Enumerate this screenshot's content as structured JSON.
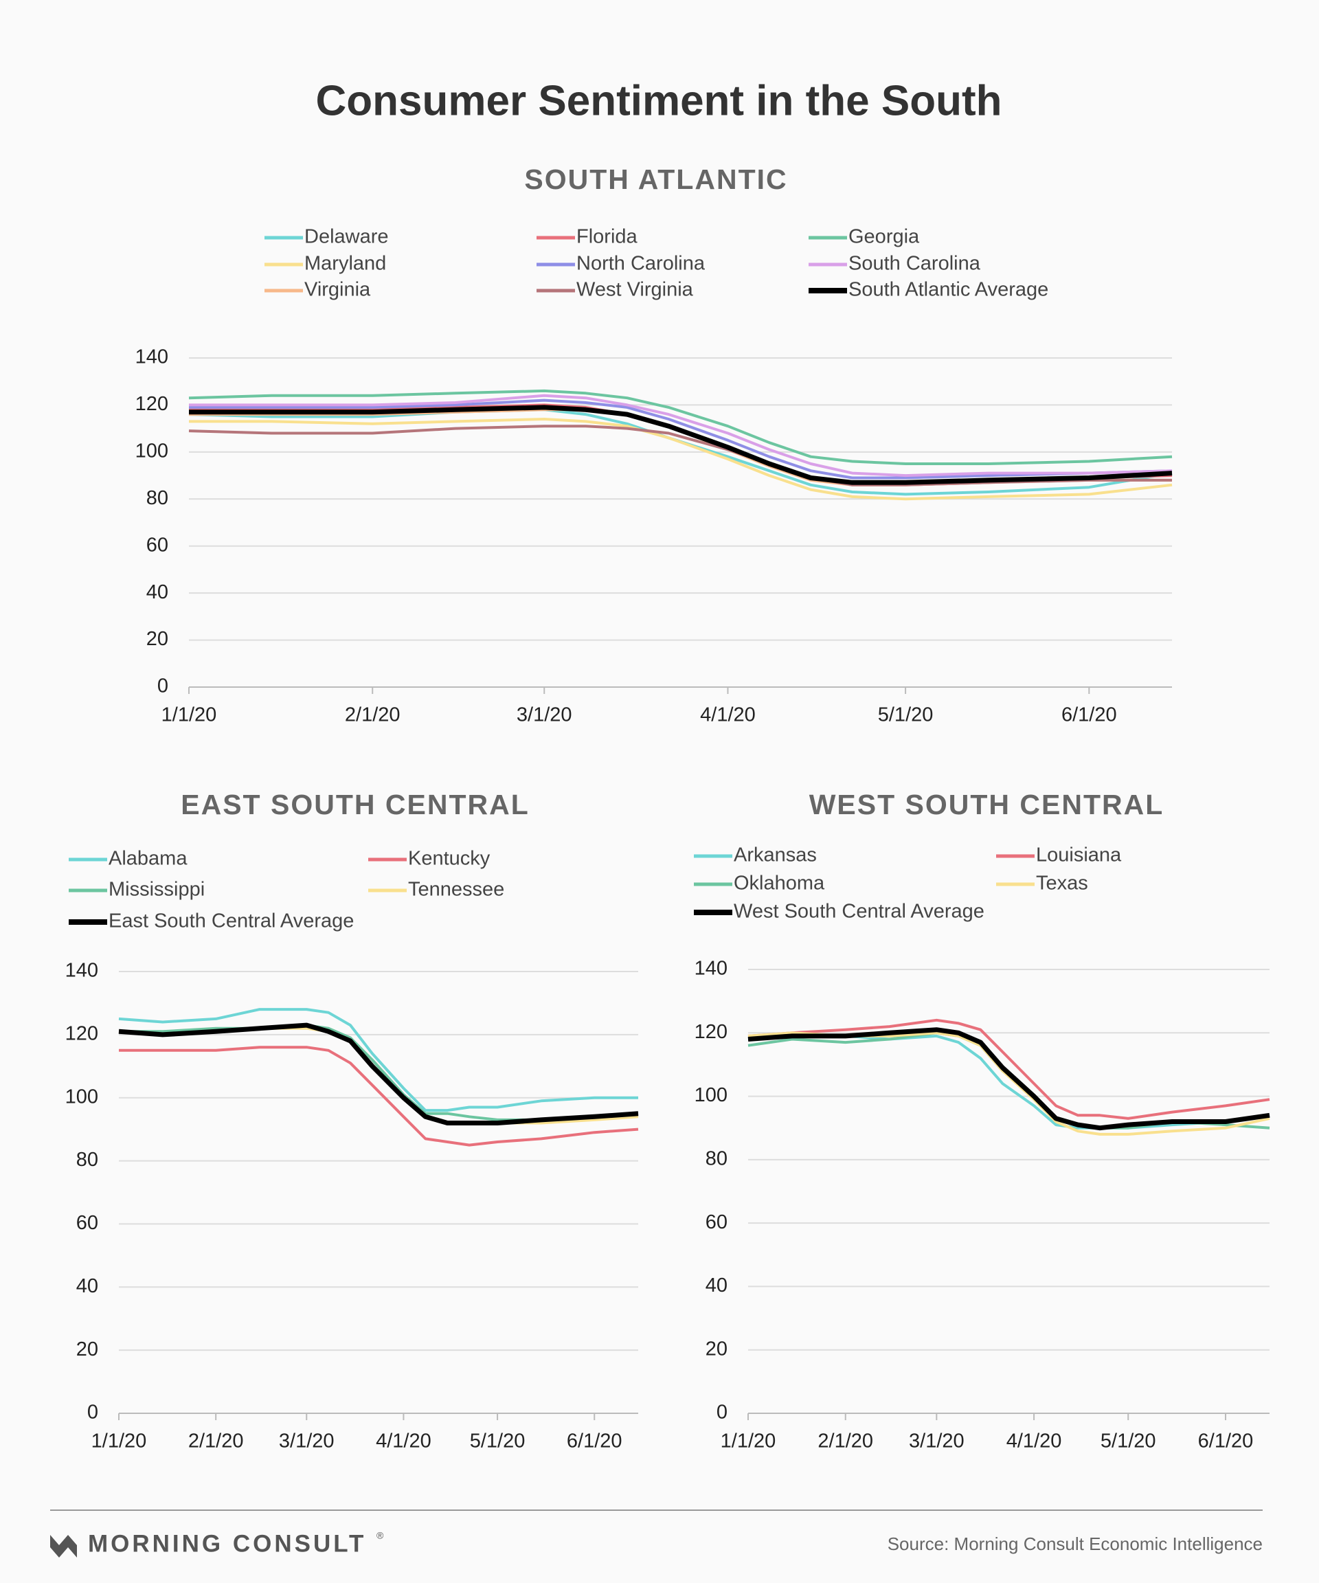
{
  "title": "Consumer Sentiment in the South",
  "footer": {
    "brand": "MORNING CONSULT",
    "brand_mark": "®",
    "source": "Source: Morning Consult Economic Intelligence"
  },
  "chart_data": [
    {
      "type": "line",
      "title": "SOUTH ATLANTIC",
      "x": [
        "1/1/20",
        "1/15/20",
        "2/1/20",
        "2/15/20",
        "3/1/20",
        "3/8/20",
        "3/15/20",
        "3/22/20",
        "4/1/20",
        "4/8/20",
        "4/15/20",
        "4/22/20",
        "5/1/20",
        "5/15/20",
        "6/1/20",
        "6/15/20"
      ],
      "xlim": [
        "1/1/20",
        "6/15/20"
      ],
      "xticks": [
        "1/1/20",
        "2/1/20",
        "3/1/20",
        "4/1/20",
        "5/1/20",
        "6/1/20"
      ],
      "ylim": [
        0,
        140
      ],
      "yticks": [
        0,
        20,
        40,
        60,
        80,
        100,
        120,
        140
      ],
      "grid": true,
      "series": [
        {
          "name": "Delaware",
          "color": "#6dd5d5",
          "values": [
            116,
            115,
            115,
            117,
            118,
            116,
            112,
            106,
            98,
            92,
            86,
            83,
            82,
            83,
            85,
            91
          ]
        },
        {
          "name": "Florida",
          "color": "#e8707b",
          "values": [
            118,
            118,
            118,
            119,
            120,
            119,
            116,
            111,
            102,
            95,
            89,
            86,
            86,
            87,
            89,
            90
          ]
        },
        {
          "name": "Georgia",
          "color": "#6cc5a0",
          "values": [
            123,
            124,
            124,
            125,
            126,
            125,
            123,
            119,
            111,
            104,
            98,
            96,
            95,
            95,
            96,
            98
          ]
        },
        {
          "name": "Maryland",
          "color": "#f9e08e",
          "values": [
            113,
            113,
            112,
            113,
            114,
            113,
            111,
            106,
            97,
            90,
            84,
            81,
            80,
            81,
            82,
            86
          ]
        },
        {
          "name": "North Carolina",
          "color": "#8e8ee6",
          "values": [
            119,
            119,
            119,
            120,
            122,
            121,
            119,
            114,
            105,
            98,
            92,
            89,
            89,
            90,
            91,
            92
          ]
        },
        {
          "name": "South Carolina",
          "color": "#d9a0e8",
          "values": [
            120,
            120,
            120,
            121,
            124,
            123,
            120,
            116,
            108,
            101,
            95,
            91,
            90,
            91,
            91,
            92
          ]
        },
        {
          "name": "Virginia",
          "color": "#f7b88a",
          "values": [
            116,
            116,
            116,
            117,
            118,
            118,
            116,
            111,
            101,
            94,
            88,
            86,
            86,
            87,
            88,
            88
          ]
        },
        {
          "name": "West Virginia",
          "color": "#b5757a",
          "values": [
            109,
            108,
            108,
            110,
            111,
            111,
            110,
            108,
            101,
            95,
            89,
            86,
            86,
            87,
            88,
            88
          ]
        },
        {
          "name": "South Atlantic Average",
          "color": "#000000",
          "values": [
            117,
            117,
            117,
            118,
            119,
            118,
            116,
            111,
            102,
            95,
            89,
            87,
            87,
            88,
            89,
            91
          ]
        }
      ]
    },
    {
      "type": "line",
      "title": "EAST SOUTH CENTRAL",
      "x": [
        "1/1/20",
        "1/15/20",
        "2/1/20",
        "2/15/20",
        "3/1/20",
        "3/8/20",
        "3/15/20",
        "3/22/20",
        "4/1/20",
        "4/8/20",
        "4/15/20",
        "4/22/20",
        "5/1/20",
        "5/15/20",
        "6/1/20",
        "6/15/20"
      ],
      "xlim": [
        "1/1/20",
        "6/15/20"
      ],
      "xticks": [
        "1/1/20",
        "2/1/20",
        "3/1/20",
        "4/1/20",
        "5/1/20",
        "6/1/20"
      ],
      "ylim": [
        0,
        140
      ],
      "yticks": [
        0,
        20,
        40,
        60,
        80,
        100,
        120,
        140
      ],
      "grid": true,
      "series": [
        {
          "name": "Alabama",
          "color": "#6dd5d5",
          "values": [
            125,
            124,
            125,
            128,
            128,
            127,
            123,
            114,
            103,
            96,
            96,
            97,
            97,
            99,
            100,
            100
          ]
        },
        {
          "name": "Kentucky",
          "color": "#e8707b",
          "values": [
            115,
            115,
            115,
            116,
            116,
            115,
            111,
            104,
            94,
            87,
            86,
            85,
            86,
            87,
            89,
            90
          ]
        },
        {
          "name": "Mississippi",
          "color": "#6cc5a0",
          "values": [
            121,
            121,
            122,
            122,
            123,
            122,
            119,
            112,
            101,
            95,
            95,
            94,
            93,
            93,
            94,
            95
          ]
        },
        {
          "name": "Tennessee",
          "color": "#f9e08e",
          "values": [
            121,
            120,
            121,
            122,
            122,
            121,
            118,
            110,
            100,
            94,
            92,
            92,
            92,
            92,
            93,
            94
          ]
        },
        {
          "name": "East South Central Average",
          "color": "#000000",
          "values": [
            121,
            120,
            121,
            122,
            123,
            121,
            118,
            110,
            100,
            94,
            92,
            92,
            92,
            93,
            94,
            95
          ]
        }
      ]
    },
    {
      "type": "line",
      "title": "WEST SOUTH CENTRAL",
      "x": [
        "1/1/20",
        "1/15/20",
        "2/1/20",
        "2/15/20",
        "3/1/20",
        "3/8/20",
        "3/15/20",
        "3/22/20",
        "4/1/20",
        "4/8/20",
        "4/15/20",
        "4/22/20",
        "5/1/20",
        "5/15/20",
        "6/1/20",
        "6/15/20"
      ],
      "xlim": [
        "1/1/20",
        "6/15/20"
      ],
      "xticks": [
        "1/1/20",
        "2/1/20",
        "3/1/20",
        "4/1/20",
        "5/1/20",
        "6/1/20"
      ],
      "ylim": [
        0,
        140
      ],
      "yticks": [
        0,
        20,
        40,
        60,
        80,
        100,
        120,
        140
      ],
      "grid": true,
      "series": [
        {
          "name": "Arkansas",
          "color": "#6dd5d5",
          "values": [
            118,
            119,
            119,
            118,
            119,
            117,
            112,
            104,
            97,
            91,
            90,
            90,
            90,
            91,
            92,
            94
          ]
        },
        {
          "name": "Louisiana",
          "color": "#e8707b",
          "values": [
            119,
            120,
            121,
            122,
            124,
            123,
            121,
            114,
            104,
            97,
            94,
            94,
            93,
            95,
            97,
            99
          ]
        },
        {
          "name": "Oklahoma",
          "color": "#6cc5a0",
          "values": [
            116,
            118,
            117,
            118,
            120,
            119,
            116,
            108,
            100,
            93,
            91,
            90,
            90,
            92,
            91,
            90
          ]
        },
        {
          "name": "Texas",
          "color": "#f9e08e",
          "values": [
            119,
            120,
            119,
            119,
            120,
            119,
            116,
            108,
            99,
            92,
            89,
            88,
            88,
            89,
            90,
            93
          ]
        },
        {
          "name": "West South Central Average",
          "color": "#000000",
          "values": [
            118,
            119,
            119,
            120,
            121,
            120,
            117,
            109,
            100,
            93,
            91,
            90,
            91,
            92,
            92,
            94
          ]
        }
      ]
    }
  ]
}
